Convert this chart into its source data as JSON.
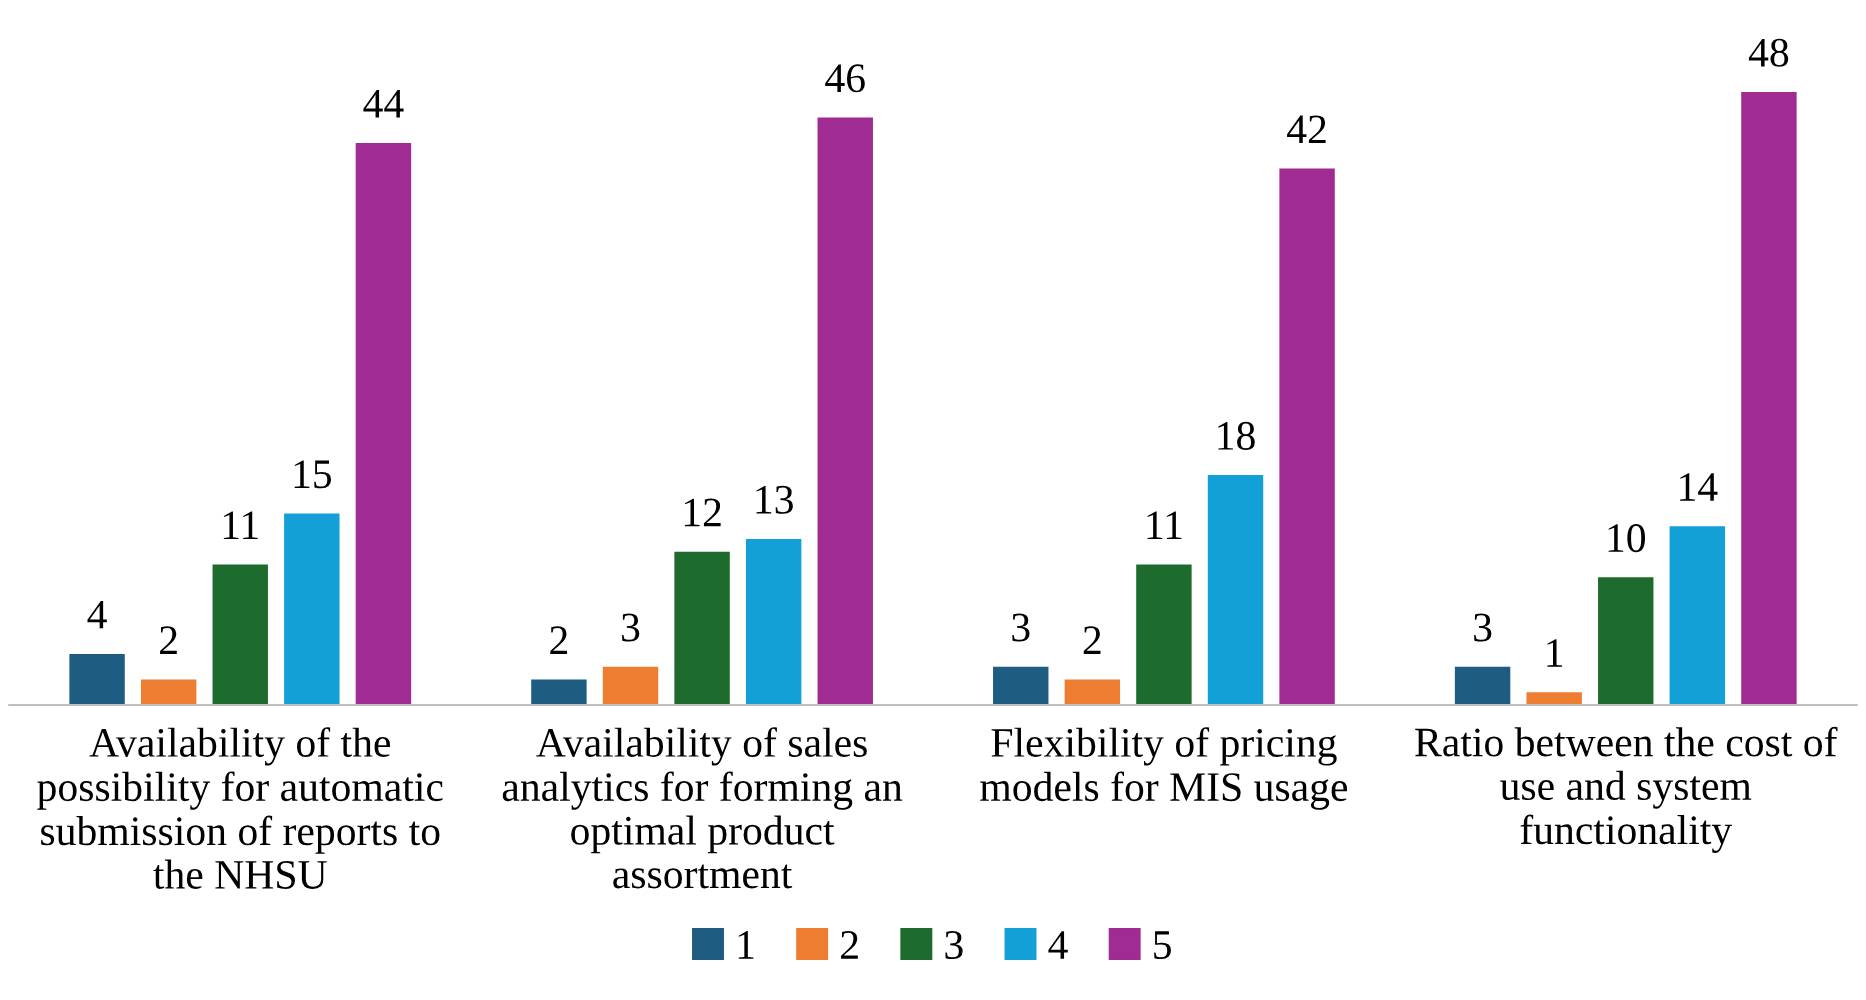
{
  "chart_data": {
    "type": "bar",
    "categories": [
      "Availability of the\npossibility for automatic\nsubmission of reports to\nthe NHSU",
      "Availability of sales\nanalytics for forming an\noptimal product\nassortment",
      "Flexibility of pricing\nmodels for MIS usage",
      "Ratio between the cost of\nuse and system\nfunctionality"
    ],
    "series": [
      {
        "name": "1",
        "color": "#1f5c82",
        "values": [
          4,
          2,
          3,
          3
        ]
      },
      {
        "name": "2",
        "color": "#ed7d31",
        "values": [
          2,
          3,
          2,
          1
        ]
      },
      {
        "name": "3",
        "color": "#1e6b2e",
        "values": [
          11,
          12,
          11,
          10
        ]
      },
      {
        "name": "4",
        "color": "#12a0d7",
        "values": [
          15,
          13,
          18,
          14
        ]
      },
      {
        "name": "5",
        "color": "#a02b93",
        "values": [
          44,
          46,
          42,
          48
        ]
      }
    ],
    "data_labels": true,
    "legend": "bottom",
    "grid": false
  }
}
